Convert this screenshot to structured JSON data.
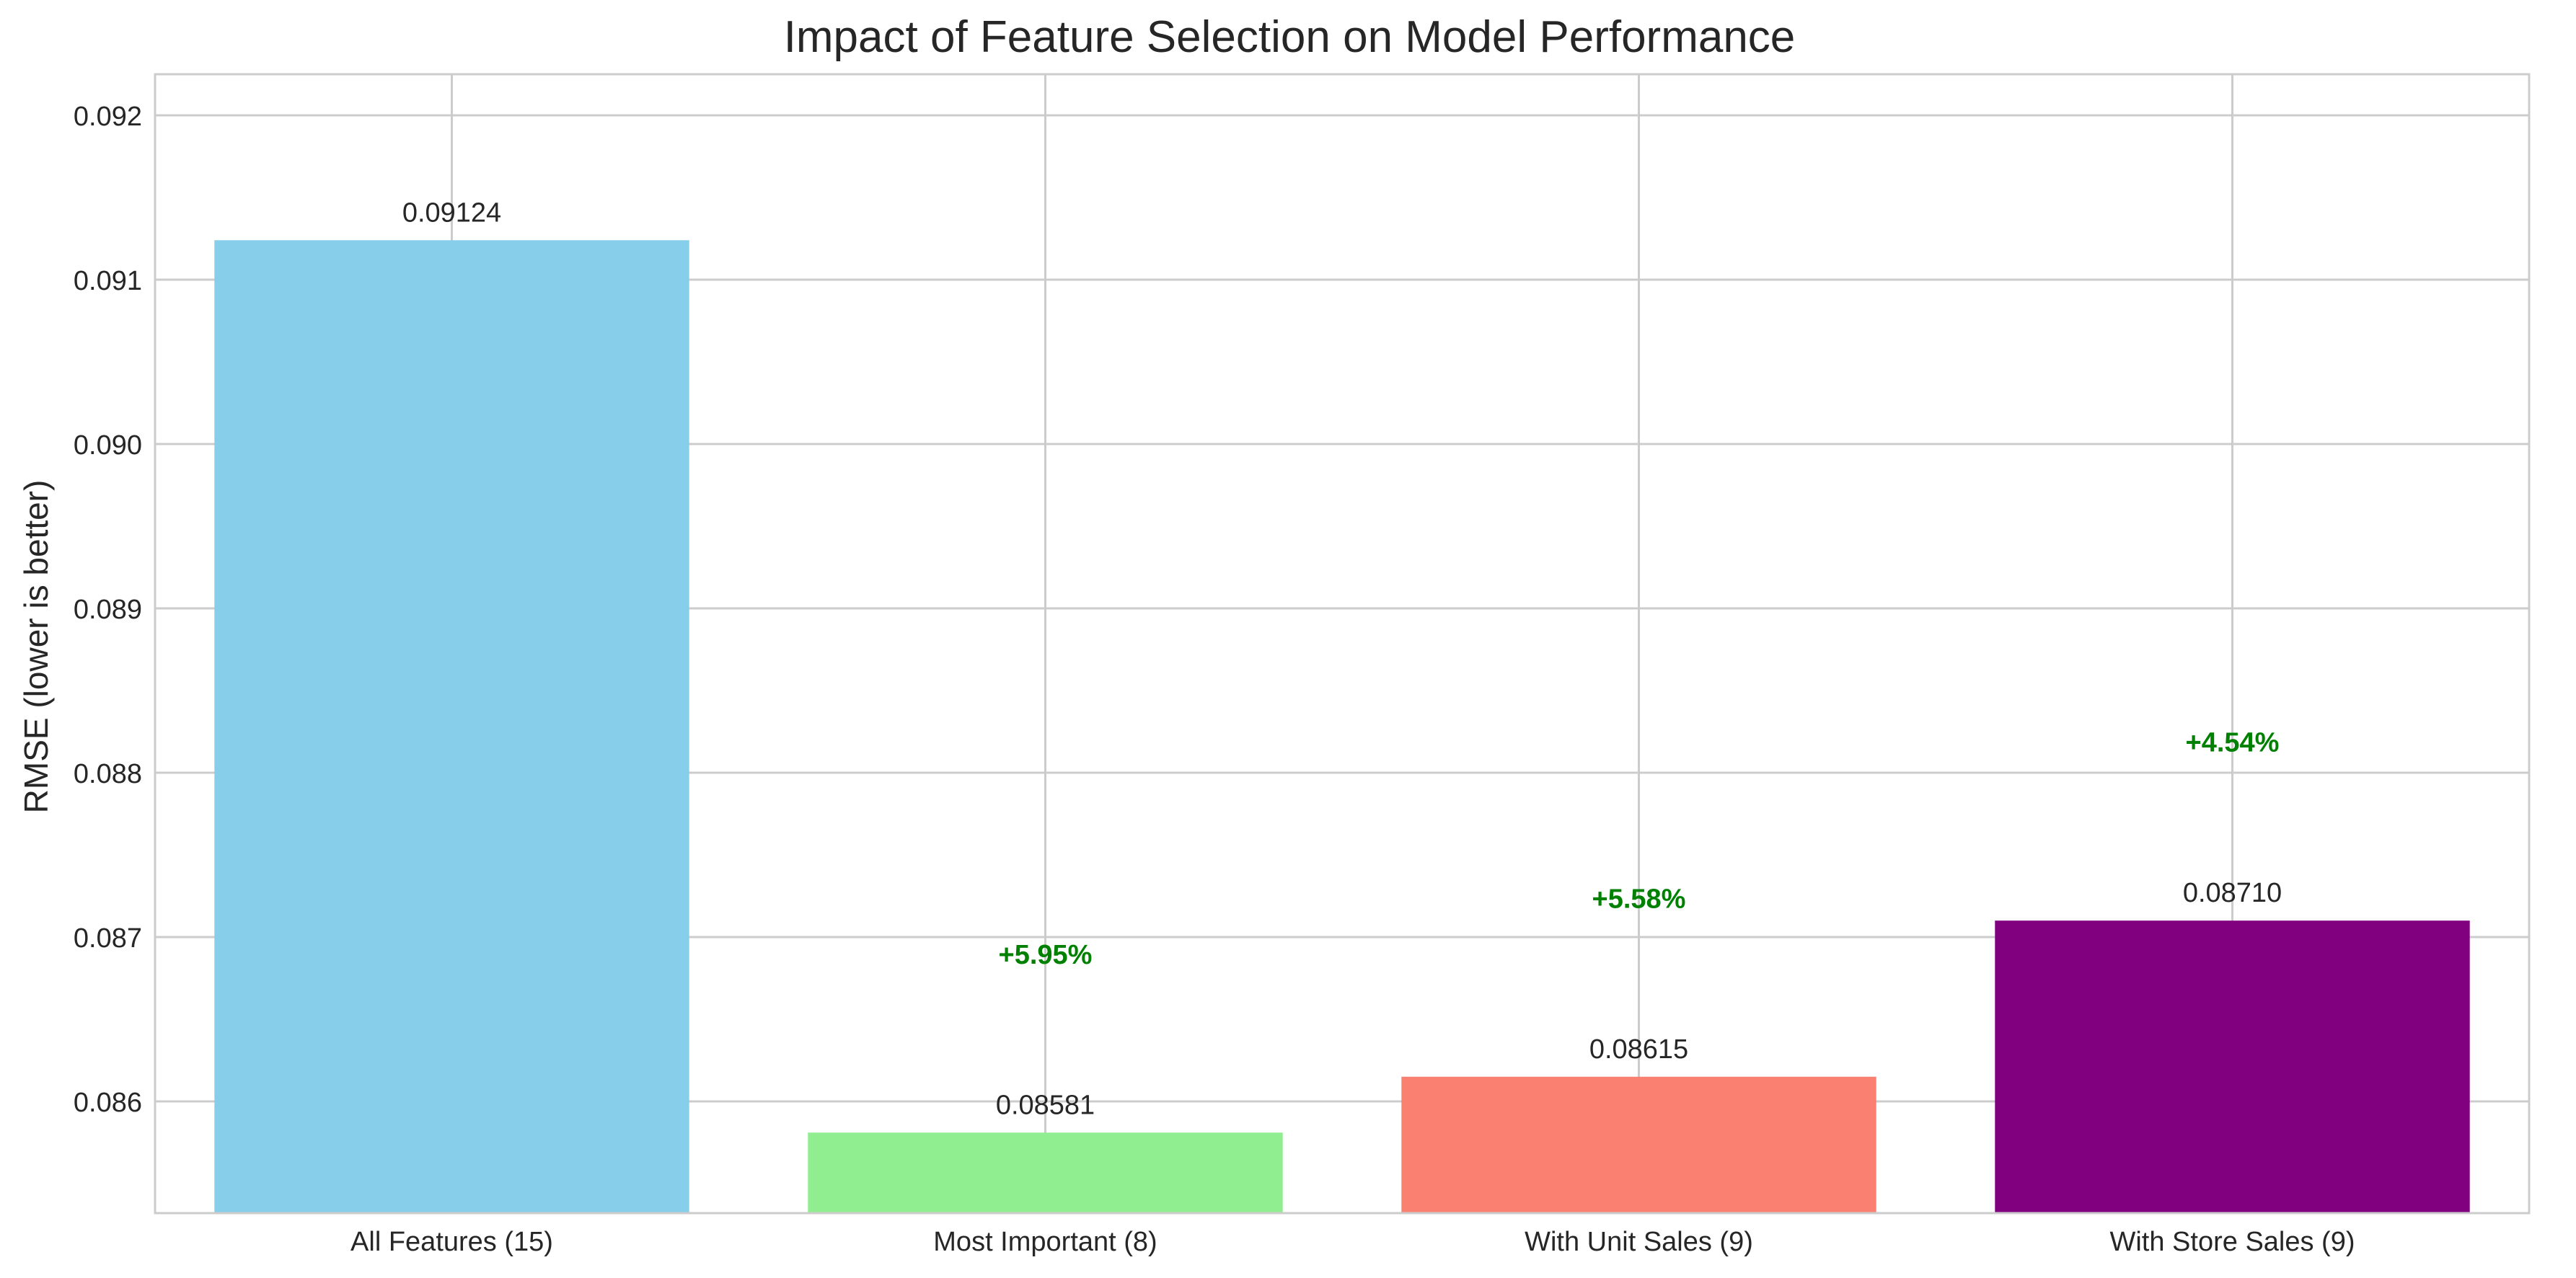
{
  "chart_data": {
    "type": "bar",
    "title": "Impact of Feature Selection on Model Performance",
    "xlabel": "",
    "ylabel": "RMSE (lower is better)",
    "categories": [
      "All Features (15)",
      "Most Important (8)",
      "With Unit Sales (9)",
      "With Store Sales (9)"
    ],
    "values": [
      0.09124,
      0.08581,
      0.08615,
      0.0871
    ],
    "value_labels": [
      "0.09124",
      "0.08581",
      "0.08615",
      "0.08710"
    ],
    "improvement_labels": [
      "",
      "+5.95%",
      "+5.58%",
      "+4.54%"
    ],
    "improvement_label_values": [
      null,
      0.0869,
      0.08724,
      0.08819
    ],
    "colors": [
      "#87ceeb",
      "#90ee90",
      "#fa8072",
      "#800080"
    ],
    "improvement_color": "#008000",
    "ylim": [
      0.08532,
      0.09225
    ],
    "yticks": [
      0.086,
      0.087,
      0.088,
      0.089,
      0.09,
      0.091,
      0.092
    ],
    "ytick_labels": [
      "0.086",
      "0.087",
      "0.088",
      "0.089",
      "0.090",
      "0.091",
      "0.092"
    ],
    "grid": true,
    "legend": "none"
  }
}
